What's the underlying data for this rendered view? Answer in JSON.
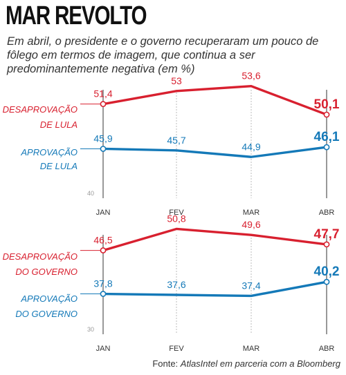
{
  "title": "MAR REVOLTO",
  "subtitle": "Em abril, o presidente e o governo recuperaram um pouco de fôlego em termos de imagem, que continua a ser predominantemente negativa (em %)",
  "source": {
    "prefix": "Fonte: ",
    "text": "AtlasIntel em parceria com a Bloomberg"
  },
  "colors": {
    "red": "#d8202f",
    "blue": "#1479b8",
    "axis": "#555555",
    "grid": "#bbbbbb"
  },
  "chart_data": [
    {
      "type": "line",
      "categories": [
        "JAN",
        "FEV",
        "MAR",
        "ABR"
      ],
      "ylim": [
        40,
        54
      ],
      "baseline_label": "40",
      "series": [
        {
          "name": "DESAPROVAÇÃO DE LULA",
          "name_lines": [
            "DESAPROVAÇÃO",
            "DE LULA"
          ],
          "color": "#d8202f",
          "values": [
            51.4,
            53,
            53.6,
            50.1
          ],
          "labels": [
            "51,4",
            "53",
            "53,6",
            "50,1"
          ]
        },
        {
          "name": "APROVAÇÃO DE LULA",
          "name_lines": [
            "APROVAÇÃO",
            "DE LULA"
          ],
          "color": "#1479b8",
          "values": [
            45.9,
            45.7,
            44.9,
            46.1
          ],
          "labels": [
            "45,9",
            "45,7",
            "44,9",
            "46,1"
          ]
        }
      ]
    },
    {
      "type": "line",
      "categories": [
        "JAN",
        "FEV",
        "MAR",
        "ABR"
      ],
      "ylim": [
        30,
        51
      ],
      "baseline_label": "30",
      "series": [
        {
          "name": "DESAPROVAÇÃO DO GOVERNO",
          "name_lines": [
            "DESAPROVAÇÃO",
            "DO GOVERNO"
          ],
          "color": "#d8202f",
          "values": [
            46.5,
            50.8,
            49.6,
            47.7
          ],
          "labels": [
            "46,5",
            "50,8",
            "49,6",
            "47,7"
          ]
        },
        {
          "name": "APROVAÇÃO DO GOVERNO",
          "name_lines": [
            "APROVAÇÃO",
            "DO GOVERNO"
          ],
          "color": "#1479b8",
          "values": [
            37.8,
            37.6,
            37.4,
            40.2
          ],
          "labels": [
            "37,8",
            "37,6",
            "37,4",
            "40,2"
          ]
        }
      ]
    }
  ]
}
